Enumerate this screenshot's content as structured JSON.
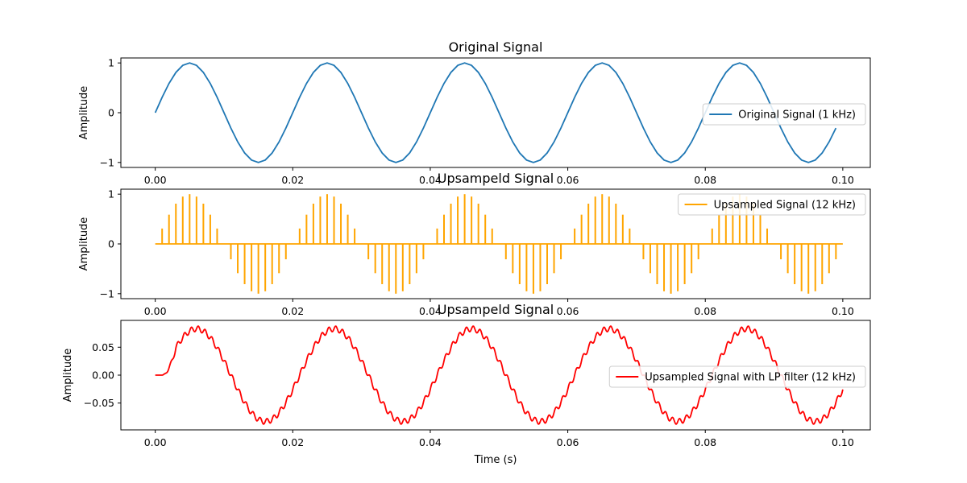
{
  "chart_data": [
    {
      "type": "line",
      "title": "Original Signal",
      "xlabel": "",
      "ylabel": "Amplitude",
      "xlim": [
        -0.005,
        0.104
      ],
      "ylim": [
        -1.1,
        1.1
      ],
      "x_ticks": [
        0.0,
        0.02,
        0.04,
        0.06,
        0.08,
        0.1
      ],
      "x_tick_labels": [
        "0.00",
        "0.02",
        "0.04",
        "0.06",
        "0.08",
        "0.10"
      ],
      "y_ticks": [
        -1,
        0,
        1
      ],
      "y_tick_labels": [
        "−1",
        "0",
        "1"
      ],
      "legend_position": "center-right",
      "series": [
        {
          "name": "Original Signal (1 kHz)",
          "color": "#1f77b4",
          "frequency_hz": 50,
          "amplitude": 1.0,
          "x_start": 0.0,
          "x_end": 0.099,
          "x_step": 0.001
        }
      ]
    },
    {
      "type": "stem",
      "title": "Upsampeld Signal",
      "xlabel": "",
      "ylabel": "Amplitude",
      "xlim": [
        -0.005,
        0.104
      ],
      "ylim": [
        -1.1,
        1.1
      ],
      "x_ticks": [
        0.0,
        0.02,
        0.04,
        0.06,
        0.08,
        0.1
      ],
      "x_tick_labels": [
        "0.00",
        "0.02",
        "0.04",
        "0.06",
        "0.08",
        "0.10"
      ],
      "y_ticks": [
        -1,
        0,
        1
      ],
      "y_tick_labels": [
        "−1",
        "0",
        "1"
      ],
      "legend_position": "top-right",
      "series": [
        {
          "name": "Upsampled Signal (12 kHz)",
          "color": "#ffa500",
          "frequency_hz": 50,
          "amplitude": 1.0,
          "x_start": 0.0,
          "x_end": 0.1,
          "sample_step": 0.001
        }
      ]
    },
    {
      "type": "line",
      "title": "Upsampeld Signal",
      "xlabel": "Time (s)",
      "ylabel": "Amplitude",
      "xlim": [
        -0.005,
        0.104
      ],
      "ylim": [
        -0.098,
        0.098
      ],
      "x_ticks": [
        0.0,
        0.02,
        0.04,
        0.06,
        0.08,
        0.1
      ],
      "x_tick_labels": [
        "0.00",
        "0.02",
        "0.04",
        "0.06",
        "0.08",
        "0.10"
      ],
      "y_ticks": [
        -0.05,
        0.0,
        0.05
      ],
      "y_tick_labels": [
        "−0.05",
        "0.00",
        "0.05"
      ],
      "legend_position": "center-right",
      "series": [
        {
          "name": "Upsampled Signal with LP filter (12 kHz)",
          "color": "#ff0000",
          "frequency_hz": 50,
          "amplitude": 0.083,
          "delay_s": 0.001,
          "ripple_hz": 1000,
          "ripple_amplitude": 0.005,
          "x_start": 0.0,
          "x_end": 0.1
        }
      ]
    }
  ]
}
